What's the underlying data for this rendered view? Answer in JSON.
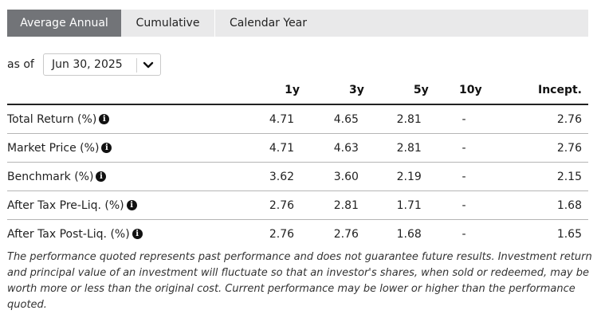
{
  "tabs": [
    {
      "label": "Average Annual",
      "active": true
    },
    {
      "label": "Cumulative",
      "active": false
    },
    {
      "label": "Calendar Year",
      "active": false
    }
  ],
  "as_of": {
    "label": "as of",
    "selected": "Jun 30, 2025",
    "icon": "chevron-down-icon"
  },
  "table": {
    "columns": [
      "",
      "1y",
      "3y",
      "5y",
      "10y",
      "Incept."
    ],
    "rows": [
      {
        "label": "Total Return (%)",
        "values": [
          "4.71",
          "4.65",
          "2.81",
          "-",
          "2.76"
        ]
      },
      {
        "label": "Market Price (%)",
        "values": [
          "4.71",
          "4.63",
          "2.81",
          "-",
          "2.76"
        ]
      },
      {
        "label": "Benchmark (%)",
        "values": [
          "3.62",
          "3.60",
          "2.19",
          "-",
          "2.15"
        ]
      },
      {
        "label": "After Tax Pre-Liq. (%)",
        "values": [
          "2.76",
          "2.81",
          "1.71",
          "-",
          "1.68"
        ]
      },
      {
        "label": "After Tax Post-Liq. (%)",
        "values": [
          "2.76",
          "2.76",
          "1.68",
          "-",
          "1.65"
        ]
      }
    ],
    "info_icon_glyph": "i"
  },
  "disclaimer": "The performance quoted represents past performance and does not guarantee future results. Investment return and principal value of an investment will fluctuate so that an investor's shares, when sold or redeemed, may be worth more or less than the original cost. Current performance may be lower or higher than the performance quoted.",
  "colors": {
    "tab_active_bg": "#727478",
    "tab_bar_bg": "#e9e9ea",
    "header_rule": "#222222",
    "row_rule": "#b5b5b5"
  }
}
